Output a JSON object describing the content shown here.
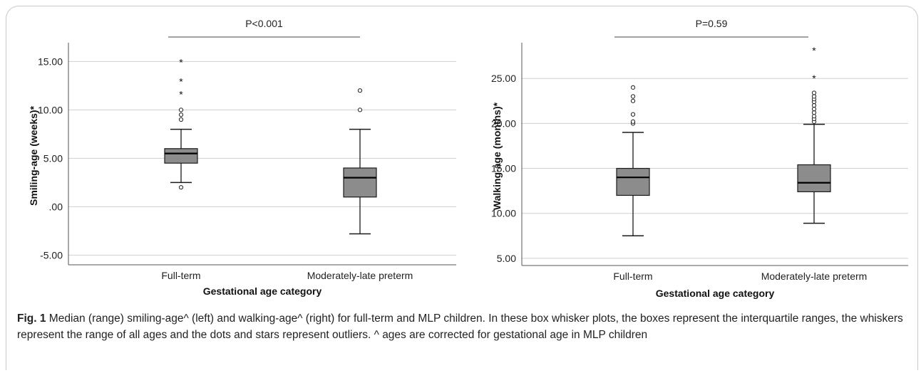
{
  "chart_data": [
    {
      "type": "box",
      "significance": "P<0.001",
      "xlabel": "Gestational age category",
      "ylabel": "Smiling-age (weeks)*",
      "ylim": [
        -6,
        16.5
      ],
      "y_ticks": [
        15,
        10,
        5,
        0,
        -5
      ],
      "y_tick_labels": [
        "15.00",
        "10.00",
        "5.00",
        ".00",
        "-5.00"
      ],
      "grid": true,
      "categories": [
        "Full-term",
        "Moderately-late preterm"
      ],
      "boxes": [
        {
          "name": "Full-term",
          "whisker_low": 2.5,
          "q1": 4.5,
          "median": 5.5,
          "q3": 6.0,
          "whisker_high": 8.0,
          "outliers_circle": [
            2.0,
            9.0,
            9.5,
            10.0
          ],
          "outliers_star": [
            11.7,
            13.0,
            15.0
          ]
        },
        {
          "name": "Moderately-late preterm",
          "whisker_low": -2.8,
          "q1": 1.0,
          "median": 3.0,
          "q3": 4.0,
          "whisker_high": 8.0,
          "outliers_circle": [
            10.0,
            12.0
          ],
          "outliers_star": []
        }
      ]
    },
    {
      "type": "box",
      "significance": "P=0.59",
      "xlabel": "Gestational age category",
      "ylabel": "Walking-age (months)*",
      "ylim": [
        4.2,
        28.5
      ],
      "y_ticks": [
        25,
        20,
        15,
        10,
        5
      ],
      "y_tick_labels": [
        "25.00",
        "20.00",
        "15.00",
        "10.00",
        "5.00"
      ],
      "grid": true,
      "categories": [
        "Full-term",
        "Moderately-late preterm"
      ],
      "boxes": [
        {
          "name": "Full-term",
          "whisker_low": 7.5,
          "q1": 12.0,
          "median": 14.0,
          "q3": 15.0,
          "whisker_high": 19.0,
          "outliers_circle": [
            20.0,
            20.2,
            21.0,
            22.5,
            23.0,
            24.0
          ],
          "outliers_star": []
        },
        {
          "name": "Moderately-late preterm",
          "whisker_low": 8.9,
          "q1": 12.4,
          "median": 13.4,
          "q3": 15.4,
          "whisker_high": 19.9,
          "outliers_circle": [
            20.2,
            20.5,
            20.8,
            21.2,
            21.6,
            22.0,
            22.4,
            22.7,
            23.0,
            23.4
          ],
          "outliers_star": [
            25.1,
            28.2
          ]
        }
      ]
    }
  ],
  "caption": {
    "label": "Fig. 1",
    "text": " Median (range) smiling-age^ (left) and walking-age^ (right) for full-term and MLP children. In these box whisker plots, the boxes represent the interquartile ranges, the whiskers represent the range of all ages and the dots and stars represent outliers. ^ ages are corrected for gestational age in MLP children"
  },
  "colors": {
    "box_fill": "#8c8c8c",
    "line": "#1a1a1a",
    "grid": "#cfcfcf",
    "axis": "#555555"
  }
}
